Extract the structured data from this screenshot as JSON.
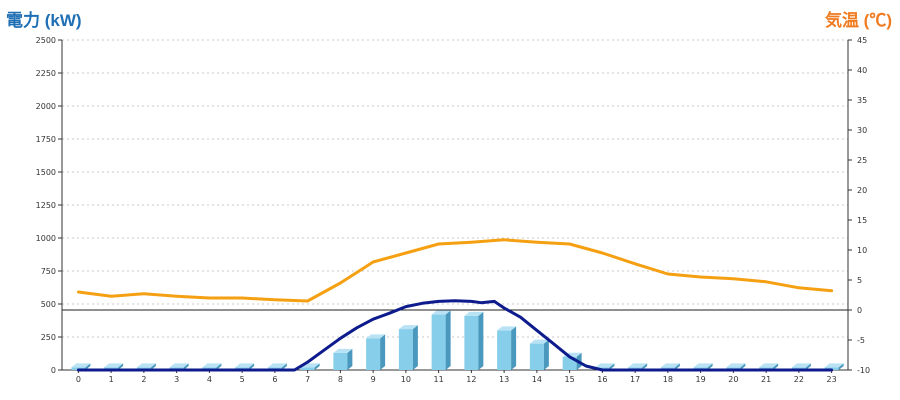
{
  "chart_data": {
    "type": "bar+line",
    "left_axis_title": "電力 (kW)",
    "right_axis_title": "気温 (℃)",
    "categories": [
      "0",
      "1",
      "2",
      "3",
      "4",
      "5",
      "6",
      "7",
      "8",
      "9",
      "10",
      "11",
      "12",
      "13",
      "14",
      "15",
      "16",
      "17",
      "18",
      "19",
      "20",
      "21",
      "22",
      "23"
    ],
    "y_left": {
      "min": 0,
      "max": 2500,
      "ticks": [
        0,
        250,
        500,
        750,
        1000,
        1250,
        1500,
        1750,
        2000,
        2250,
        2500
      ]
    },
    "y_right": {
      "min": -10,
      "max": 45,
      "ticks": [
        -10,
        -5,
        0,
        5,
        10,
        15,
        20,
        25,
        30,
        35,
        40,
        45
      ]
    },
    "grid": "horizontal-dashed",
    "series": [
      {
        "kind": "bar",
        "axis": "left",
        "color": "#87ceeb",
        "values": [
          20,
          20,
          20,
          20,
          20,
          20,
          20,
          20,
          130,
          240,
          310,
          420,
          410,
          300,
          200,
          100,
          20,
          20,
          20,
          20,
          20,
          20,
          20,
          20
        ]
      },
      {
        "kind": "line",
        "axis": "left",
        "color": "#0d1b8c",
        "x": [
          0,
          1,
          2,
          3,
          4,
          5,
          6,
          6.6,
          7,
          7.5,
          8,
          8.5,
          9,
          9.5,
          10,
          10.5,
          11,
          11.5,
          12,
          12.3,
          12.7,
          13,
          13.5,
          14,
          14.5,
          15,
          15.5,
          16,
          17,
          18,
          19,
          20,
          21,
          22,
          23
        ],
        "values": [
          0,
          0,
          0,
          0,
          0,
          0,
          0,
          0,
          60,
          150,
          240,
          320,
          385,
          430,
          480,
          505,
          520,
          525,
          520,
          510,
          520,
          470,
          400,
          300,
          200,
          100,
          30,
          0,
          0,
          0,
          0,
          0,
          0,
          0,
          0
        ]
      },
      {
        "kind": "line",
        "axis": "right",
        "color": "#f5a012",
        "x": [
          0,
          1,
          2,
          3,
          4,
          5,
          6,
          7,
          8,
          9,
          10,
          11,
          12,
          13,
          14,
          15,
          16,
          17,
          18,
          19,
          20,
          21,
          22,
          23
        ],
        "values": [
          3,
          2.3,
          2.7,
          2.3,
          2,
          2,
          1.7,
          1.5,
          4.5,
          8,
          9.5,
          11,
          11.3,
          11.7,
          11.3,
          11,
          9.5,
          7.7,
          6,
          5.5,
          5.2,
          4.7,
          3.7,
          3.2
        ]
      }
    ]
  }
}
